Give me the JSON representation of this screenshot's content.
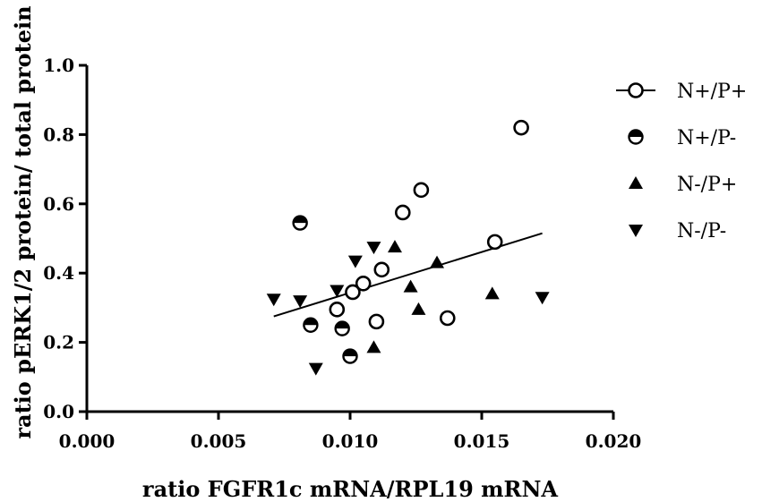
{
  "chart_data": {
    "type": "scatter",
    "xlabel": "ratio FGFR1c mRNA/RPL19 mRNA",
    "ylabel": "ratio pERK1/2 protein/ total protein",
    "xlim": [
      0,
      0.02
    ],
    "ylim": [
      0,
      1.0
    ],
    "x_ticks": [
      "0.000",
      "0.005",
      "0.010",
      "0.015",
      "0.020"
    ],
    "y_ticks": [
      "0.0",
      "0.2",
      "0.4",
      "0.6",
      "0.8",
      "1.0"
    ],
    "grid": false,
    "legend_position": "right",
    "series": [
      {
        "name": "N+/P+",
        "marker": "open-circle",
        "points": [
          [
            0.0095,
            0.295
          ],
          [
            0.0101,
            0.345
          ],
          [
            0.0105,
            0.37
          ],
          [
            0.011,
            0.26
          ],
          [
            0.0112,
            0.41
          ],
          [
            0.012,
            0.575
          ],
          [
            0.0127,
            0.64
          ],
          [
            0.0137,
            0.27
          ],
          [
            0.0155,
            0.49
          ],
          [
            0.0165,
            0.82
          ]
        ]
      },
      {
        "name": "N+/P-",
        "marker": "half-filled-circle",
        "points": [
          [
            0.0081,
            0.545
          ],
          [
            0.0085,
            0.25
          ],
          [
            0.0097,
            0.24
          ],
          [
            0.01,
            0.16
          ]
        ]
      },
      {
        "name": "N-/P+",
        "marker": "triangle-up",
        "points": [
          [
            0.0109,
            0.185
          ],
          [
            0.0117,
            0.475
          ],
          [
            0.0123,
            0.36
          ],
          [
            0.0126,
            0.295
          ],
          [
            0.0133,
            0.43
          ],
          [
            0.0154,
            0.34
          ]
        ]
      },
      {
        "name": "N-/P-",
        "marker": "triangle-down",
        "points": [
          [
            0.0071,
            0.325
          ],
          [
            0.0081,
            0.32
          ],
          [
            0.0087,
            0.125
          ],
          [
            0.0095,
            0.35
          ],
          [
            0.0102,
            0.435
          ],
          [
            0.0109,
            0.475
          ],
          [
            0.0173,
            0.33
          ]
        ]
      }
    ],
    "regression_line": {
      "x": [
        0.0071,
        0.0173
      ],
      "y": [
        0.275,
        0.515
      ]
    },
    "colors": {
      "marker": "#000000",
      "fill": "#ffffff"
    }
  }
}
